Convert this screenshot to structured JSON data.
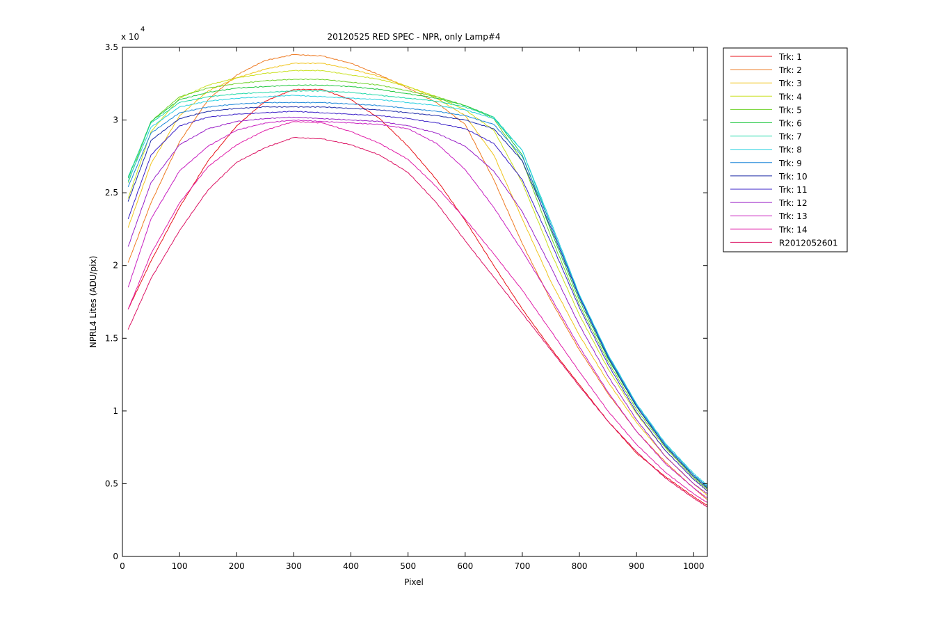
{
  "chart_data": {
    "type": "line",
    "title": "20120525 RED SPEC - NPR, only Lamp#4",
    "xlabel": "Pixel",
    "ylabel": "NPRL4 Lites (ADU/pix)",
    "y_exponent_label": "x 10",
    "y_exponent_power": "4",
    "xlim": [
      0,
      1024
    ],
    "ylim": [
      0,
      35000
    ],
    "xticks": [
      0,
      100,
      200,
      300,
      400,
      500,
      600,
      700,
      800,
      900,
      1000
    ],
    "yticks": [
      0,
      5000,
      10000,
      15000,
      20000,
      25000,
      30000,
      35000
    ],
    "ytick_labels": [
      "0",
      "0.5",
      "1",
      "1.5",
      "2",
      "2.5",
      "3",
      "3.5"
    ],
    "grid": false,
    "legend_position": "outside-right",
    "series": [
      {
        "name": "Trk: 1",
        "color": "#e8131a",
        "x": [
          10,
          50,
          100,
          150,
          200,
          250,
          300,
          350,
          400,
          450,
          500,
          550,
          600,
          650,
          700,
          750,
          800,
          850,
          900,
          950,
          1000,
          1024
        ],
        "y": [
          17000,
          20300,
          24000,
          27200,
          29600,
          31300,
          32100,
          32100,
          31400,
          30100,
          28200,
          25900,
          23100,
          20000,
          17000,
          14300,
          11800,
          9300,
          7100,
          5500,
          4100,
          3500
        ]
      },
      {
        "name": "Trk: 2",
        "color": "#ee7a22",
        "x": [
          10,
          50,
          100,
          150,
          200,
          250,
          300,
          350,
          400,
          450,
          500,
          550,
          600,
          650,
          700,
          750,
          800,
          850,
          900,
          950,
          1000,
          1024
        ],
        "y": [
          20200,
          24300,
          28500,
          31400,
          33100,
          34100,
          34500,
          34400,
          33900,
          33100,
          32200,
          31200,
          29700,
          25900,
          21500,
          17600,
          14200,
          11200,
          8600,
          6500,
          4700,
          3900
        ]
      },
      {
        "name": "Trk: 3",
        "color": "#f0c41c",
        "x": [
          10,
          50,
          100,
          150,
          200,
          250,
          300,
          350,
          400,
          450,
          500,
          550,
          600,
          650,
          700,
          750,
          800,
          850,
          900,
          950,
          1000,
          1024
        ],
        "y": [
          22600,
          27000,
          30300,
          32000,
          32900,
          33500,
          33900,
          33900,
          33500,
          33000,
          32300,
          31500,
          30300,
          27600,
          23200,
          18900,
          15200,
          12000,
          9200,
          6900,
          5000,
          4200
        ]
      },
      {
        "name": "Trk: 4",
        "color": "#c9e01e",
        "x": [
          10,
          50,
          100,
          150,
          200,
          250,
          300,
          350,
          400,
          450,
          500,
          550,
          600,
          650,
          700,
          750,
          800,
          850,
          900,
          950,
          1000,
          1024
        ],
        "y": [
          24600,
          29200,
          31500,
          32400,
          32900,
          33200,
          33400,
          33400,
          33100,
          32800,
          32300,
          31600,
          30700,
          29300,
          25700,
          20900,
          16600,
          12900,
          9800,
          7300,
          5300,
          4500
        ]
      },
      {
        "name": "Trk: 5",
        "color": "#6ed22a",
        "x": [
          10,
          50,
          100,
          150,
          200,
          250,
          300,
          350,
          400,
          450,
          500,
          550,
          600,
          650,
          700,
          750,
          800,
          850,
          900,
          950,
          1000,
          1024
        ],
        "y": [
          25700,
          29900,
          31600,
          32200,
          32500,
          32700,
          32800,
          32800,
          32600,
          32400,
          32000,
          31600,
          31000,
          30100,
          27200,
          22000,
          17300,
          13400,
          10100,
          7500,
          5400,
          4600
        ]
      },
      {
        "name": "Trk: 6",
        "color": "#20c840",
        "x": [
          10,
          50,
          100,
          150,
          200,
          250,
          300,
          350,
          400,
          450,
          500,
          550,
          600,
          650,
          700,
          750,
          800,
          850,
          900,
          950,
          1000,
          1024
        ],
        "y": [
          26000,
          29900,
          31400,
          31900,
          32200,
          32300,
          32400,
          32400,
          32300,
          32100,
          31800,
          31500,
          31000,
          30200,
          27600,
          22400,
          17600,
          13600,
          10300,
          7600,
          5500,
          4700
        ]
      },
      {
        "name": "Trk: 7",
        "color": "#1ed8a8",
        "x": [
          10,
          50,
          100,
          150,
          200,
          250,
          300,
          350,
          400,
          450,
          500,
          550,
          600,
          650,
          700,
          750,
          800,
          850,
          900,
          950,
          1000,
          1024
        ],
        "y": [
          26100,
          29800,
          31200,
          31600,
          31800,
          31900,
          32000,
          32000,
          31900,
          31700,
          31500,
          31300,
          30900,
          30200,
          27900,
          22800,
          17900,
          13800,
          10400,
          7700,
          5600,
          4800
        ]
      },
      {
        "name": "Trk: 8",
        "color": "#28d0e0",
        "x": [
          10,
          50,
          100,
          150,
          200,
          250,
          300,
          350,
          400,
          450,
          500,
          550,
          600,
          650,
          700,
          750,
          800,
          850,
          900,
          950,
          1000,
          1024
        ],
        "y": [
          25800,
          29500,
          30900,
          31300,
          31500,
          31600,
          31700,
          31600,
          31500,
          31400,
          31200,
          31000,
          30700,
          30100,
          27900,
          23000,
          18000,
          13900,
          10500,
          7800,
          5700,
          4900
        ]
      },
      {
        "name": "Trk: 9",
        "color": "#1a86d8",
        "x": [
          10,
          50,
          100,
          150,
          200,
          250,
          300,
          350,
          400,
          450,
          500,
          550,
          600,
          650,
          700,
          750,
          800,
          850,
          900,
          950,
          1000,
          1024
        ],
        "y": [
          25400,
          29100,
          30500,
          30900,
          31100,
          31200,
          31200,
          31200,
          31100,
          31000,
          30800,
          30600,
          30300,
          29700,
          27500,
          22800,
          17900,
          13800,
          10400,
          7700,
          5600,
          4800
        ]
      },
      {
        "name": "Trk: 10",
        "color": "#1c2aa8",
        "x": [
          10,
          50,
          100,
          150,
          200,
          250,
          300,
          350,
          400,
          450,
          500,
          550,
          600,
          650,
          700,
          750,
          800,
          850,
          900,
          950,
          1000,
          1024
        ],
        "y": [
          24400,
          28600,
          30100,
          30600,
          30800,
          30900,
          30900,
          30900,
          30800,
          30700,
          30500,
          30300,
          30000,
          29400,
          27200,
          22600,
          17800,
          13700,
          10300,
          7600,
          5500,
          4700
        ]
      },
      {
        "name": "Trk: 11",
        "color": "#3a20c8",
        "x": [
          10,
          50,
          100,
          150,
          200,
          250,
          300,
          350,
          400,
          450,
          500,
          550,
          600,
          650,
          700,
          750,
          800,
          850,
          900,
          950,
          1000,
          1024
        ],
        "y": [
          23200,
          27600,
          29600,
          30200,
          30400,
          30500,
          30600,
          30500,
          30400,
          30300,
          30100,
          29800,
          29400,
          28400,
          25900,
          21600,
          17100,
          13200,
          9900,
          7300,
          5300,
          4500
        ]
      },
      {
        "name": "Trk: 12",
        "color": "#9a22c8",
        "x": [
          10,
          50,
          100,
          150,
          200,
          250,
          300,
          350,
          400,
          450,
          500,
          550,
          600,
          650,
          700,
          750,
          800,
          850,
          900,
          950,
          1000,
          1024
        ],
        "y": [
          21300,
          25700,
          28300,
          29400,
          29900,
          30100,
          30200,
          30100,
          30000,
          29900,
          29600,
          29100,
          28200,
          26500,
          23700,
          19900,
          15900,
          12400,
          9400,
          6900,
          5000,
          4300
        ]
      },
      {
        "name": "Trk: 13",
        "color": "#c820c0",
        "x": [
          10,
          50,
          100,
          150,
          200,
          250,
          300,
          350,
          400,
          450,
          500,
          550,
          600,
          650,
          700,
          750,
          800,
          850,
          900,
          950,
          1000,
          1024
        ],
        "y": [
          18500,
          23200,
          26500,
          28200,
          29300,
          29800,
          30000,
          29900,
          29800,
          29700,
          29400,
          28400,
          26600,
          24000,
          21000,
          17800,
          14400,
          11300,
          8600,
          6400,
          4700,
          4000
        ]
      },
      {
        "name": "Trk: 14",
        "color": "#e01ea8",
        "x": [
          10,
          50,
          100,
          150,
          200,
          250,
          300,
          350,
          400,
          450,
          500,
          550,
          600,
          650,
          700,
          750,
          800,
          850,
          900,
          950,
          1000,
          1024
        ],
        "y": [
          17000,
          20800,
          24300,
          26800,
          28300,
          29300,
          29900,
          29800,
          29200,
          28400,
          27300,
          25400,
          23200,
          20800,
          18300,
          15500,
          12700,
          10000,
          7700,
          5800,
          4300,
          3700
        ]
      },
      {
        "name": "R2012052601",
        "color": "#dc1464",
        "x": [
          10,
          50,
          100,
          150,
          200,
          250,
          300,
          350,
          400,
          450,
          500,
          550,
          600,
          650,
          700,
          750,
          800,
          850,
          900,
          950,
          1000,
          1024
        ],
        "y": [
          15600,
          19100,
          22400,
          25200,
          27100,
          28100,
          28800,
          28700,
          28300,
          27600,
          26400,
          24300,
          21700,
          19200,
          16700,
          14200,
          11700,
          9300,
          7200,
          5400,
          4000,
          3400
        ]
      }
    ]
  }
}
